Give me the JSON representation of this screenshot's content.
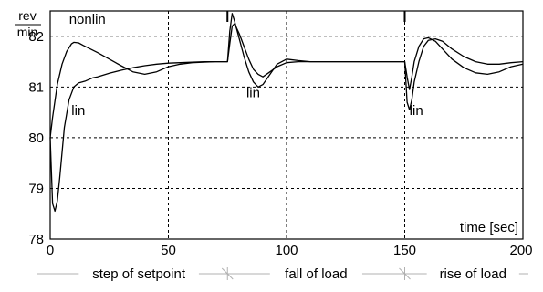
{
  "chart_data": {
    "type": "line",
    "title": "",
    "xlabel": "time [sec]",
    "ylabel": "",
    "y_unit_numerator": "rev",
    "y_unit_denominator": "min",
    "xlim": [
      0,
      200
    ],
    "ylim": [
      78,
      82.5
    ],
    "x_ticks": [
      0,
      50,
      100,
      150,
      200
    ],
    "x_tick_labels": [
      "0",
      "50",
      "100",
      "150",
      "200"
    ],
    "y_ticks": [
      78,
      79,
      80,
      81,
      82
    ],
    "y_tick_labels": [
      "78",
      "79",
      "80",
      "81",
      "82"
    ],
    "grid": "dashed",
    "series": [
      {
        "name": "nonlin",
        "color": "#000000",
        "x": [
          0,
          1,
          3,
          5,
          7,
          9,
          10,
          12,
          14,
          17,
          20,
          25,
          30,
          35,
          40,
          45,
          50,
          55,
          60,
          65,
          70,
          75,
          76,
          77,
          78,
          80,
          82,
          84,
          86,
          88,
          90,
          93,
          96,
          100,
          105,
          110,
          120,
          130,
          140,
          150,
          151,
          152,
          153,
          154,
          156,
          158,
          160,
          163,
          166,
          170,
          175,
          180,
          185,
          190,
          195,
          200
        ],
        "y": [
          80.0,
          80.4,
          81.05,
          81.45,
          81.7,
          81.85,
          81.88,
          81.87,
          81.82,
          81.75,
          81.68,
          81.55,
          81.42,
          81.3,
          81.25,
          81.3,
          81.4,
          81.45,
          81.48,
          81.49,
          81.5,
          81.5,
          82.1,
          82.45,
          82.3,
          81.95,
          81.6,
          81.3,
          81.1,
          81.0,
          81.05,
          81.25,
          81.45,
          81.55,
          81.52,
          81.5,
          81.5,
          81.5,
          81.5,
          81.5,
          81.2,
          80.95,
          81.2,
          81.5,
          81.8,
          81.95,
          81.97,
          81.9,
          81.75,
          81.55,
          81.38,
          81.28,
          81.25,
          81.3,
          81.4,
          81.45
        ]
      },
      {
        "name": "lin",
        "color": "#000000",
        "x": [
          0,
          1,
          2,
          3,
          4,
          6,
          8,
          10,
          12,
          15,
          18,
          20,
          25,
          30,
          35,
          40,
          45,
          50,
          55,
          60,
          65,
          70,
          75,
          76,
          77,
          78,
          80,
          82,
          84,
          86,
          88,
          90,
          93,
          96,
          100,
          105,
          110,
          120,
          130,
          140,
          150,
          151,
          152,
          153,
          154,
          156,
          158,
          160,
          163,
          166,
          170,
          175,
          180,
          185,
          190,
          195,
          200
        ],
        "y": [
          80.0,
          78.7,
          78.55,
          78.75,
          79.2,
          80.2,
          80.75,
          81.0,
          81.08,
          81.12,
          81.18,
          81.2,
          81.27,
          81.33,
          81.38,
          81.42,
          81.45,
          81.47,
          81.48,
          81.49,
          81.5,
          81.5,
          81.5,
          81.85,
          82.2,
          82.25,
          82.05,
          81.8,
          81.55,
          81.35,
          81.25,
          81.2,
          81.3,
          81.4,
          81.48,
          81.5,
          81.5,
          81.5,
          81.5,
          81.5,
          81.5,
          80.7,
          80.55,
          80.75,
          81.1,
          81.5,
          81.8,
          81.92,
          81.95,
          81.9,
          81.75,
          81.6,
          81.5,
          81.45,
          81.45,
          81.48,
          81.5
        ]
      }
    ],
    "annotations": [
      {
        "text": "nonlin",
        "x": 8,
        "y": 82.25
      },
      {
        "text": "lin",
        "x": 9,
        "y": 80.45
      },
      {
        "text": "lin",
        "x": 83,
        "y": 80.8
      },
      {
        "text": "lin",
        "x": 152,
        "y": 80.45
      }
    ],
    "phases": [
      {
        "label": "step of setpoint",
        "x_start": 0,
        "x_end": 75
      },
      {
        "label": "fall of load",
        "x_start": 75,
        "x_end": 150
      },
      {
        "label": "rise of load",
        "x_start": 150,
        "x_end": 200
      }
    ],
    "event_markers_x": [
      75,
      150
    ]
  }
}
